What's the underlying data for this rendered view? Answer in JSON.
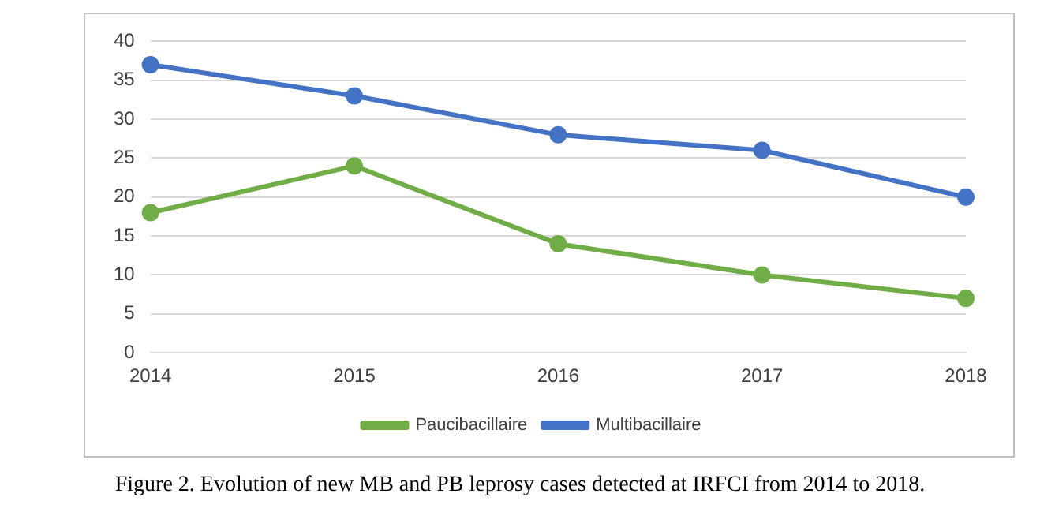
{
  "chart_data": {
    "type": "line",
    "categories": [
      "2014",
      "2015",
      "2016",
      "2017",
      "2018"
    ],
    "series": [
      {
        "name": "Paucibacillaire",
        "color": "#70ad47",
        "values": [
          18,
          24,
          14,
          10,
          7
        ]
      },
      {
        "name": "Multibacillaire",
        "color": "#4472c4",
        "values": [
          37,
          33,
          28,
          26,
          20
        ]
      }
    ],
    "ylim": [
      0,
      40
    ],
    "yticks": [
      0,
      5,
      10,
      15,
      20,
      25,
      30,
      35,
      40
    ],
    "grid": "y",
    "legend": "bottom",
    "marker": "circle",
    "line_style": "solid",
    "annotations": [
      "Figure 2. Evolution of new MB and PB leprosy cases detected at IRFCI from 2014 to 2018."
    ]
  }
}
